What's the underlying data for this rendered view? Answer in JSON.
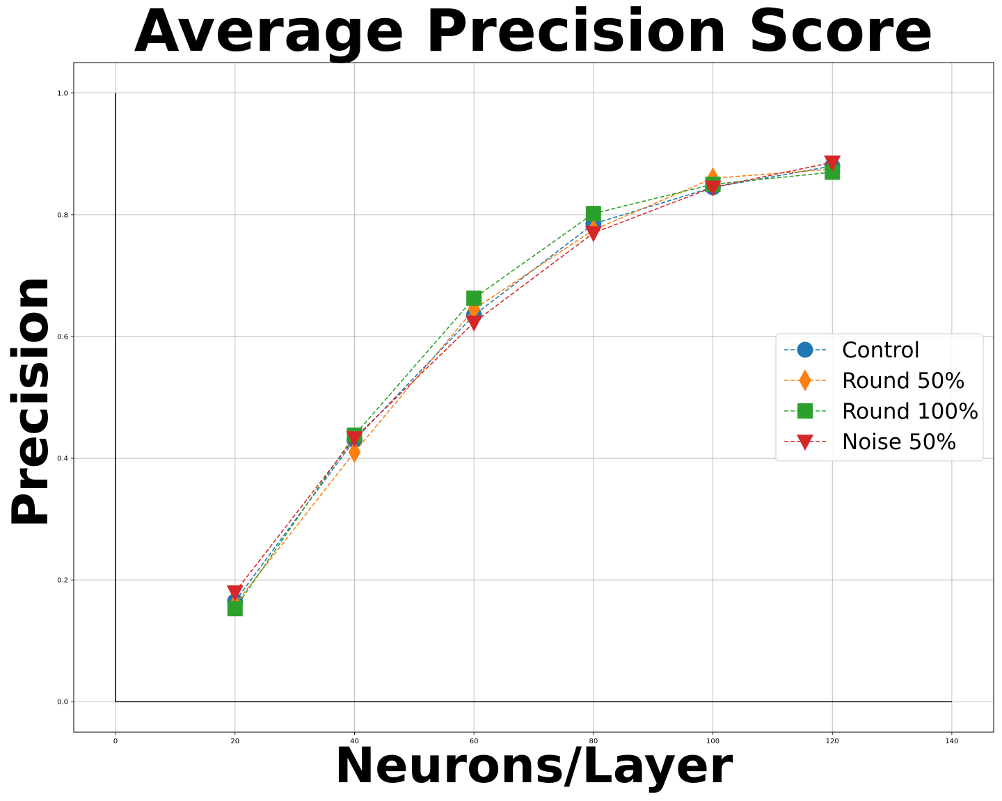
{
  "chart_data": {
    "type": "line",
    "title": "Average Precision Score",
    "xlabel": "Neurons/Layer",
    "ylabel": "Precision",
    "xlim": [
      -7,
      147
    ],
    "ylim": [
      -0.05,
      1.05
    ],
    "xticks": [
      0,
      20,
      40,
      60,
      80,
      100,
      120,
      140
    ],
    "xtick_labels": [
      "0",
      "20",
      "40",
      "60",
      "80",
      "100",
      "120",
      "140"
    ],
    "yticks": [
      0.0,
      0.2,
      0.4,
      0.6,
      0.8,
      1.0
    ],
    "ytick_labels": [
      "0.0",
      "0.2",
      "0.4",
      "0.6",
      "0.8",
      "1.0"
    ],
    "grid": true,
    "legend_position": "right",
    "reference_lines": {
      "vertical": {
        "x": 0,
        "y_from": 0,
        "y_to": 1.0
      },
      "horizontal": {
        "y": 0,
        "x_from": 0,
        "x_to": 140
      }
    },
    "x": [
      20,
      40,
      60,
      80,
      100,
      120
    ],
    "series": [
      {
        "name": "Control",
        "values": [
          0.165,
          0.43,
          0.635,
          0.785,
          0.845,
          0.88
        ],
        "color": "#1f77b4",
        "marker": "circle"
      },
      {
        "name": "Round 50%",
        "values": [
          0.16,
          0.41,
          0.645,
          0.775,
          0.86,
          0.875
        ],
        "color": "#ff7f0e",
        "marker": "diamond"
      },
      {
        "name": "Round 100%",
        "values": [
          0.153,
          0.438,
          0.663,
          0.802,
          0.85,
          0.87
        ],
        "color": "#2ca02c",
        "marker": "square"
      },
      {
        "name": "Noise 50%",
        "values": [
          0.18,
          0.433,
          0.623,
          0.77,
          0.845,
          0.886
        ],
        "color": "#d62728",
        "marker": "triangle-down"
      }
    ]
  }
}
